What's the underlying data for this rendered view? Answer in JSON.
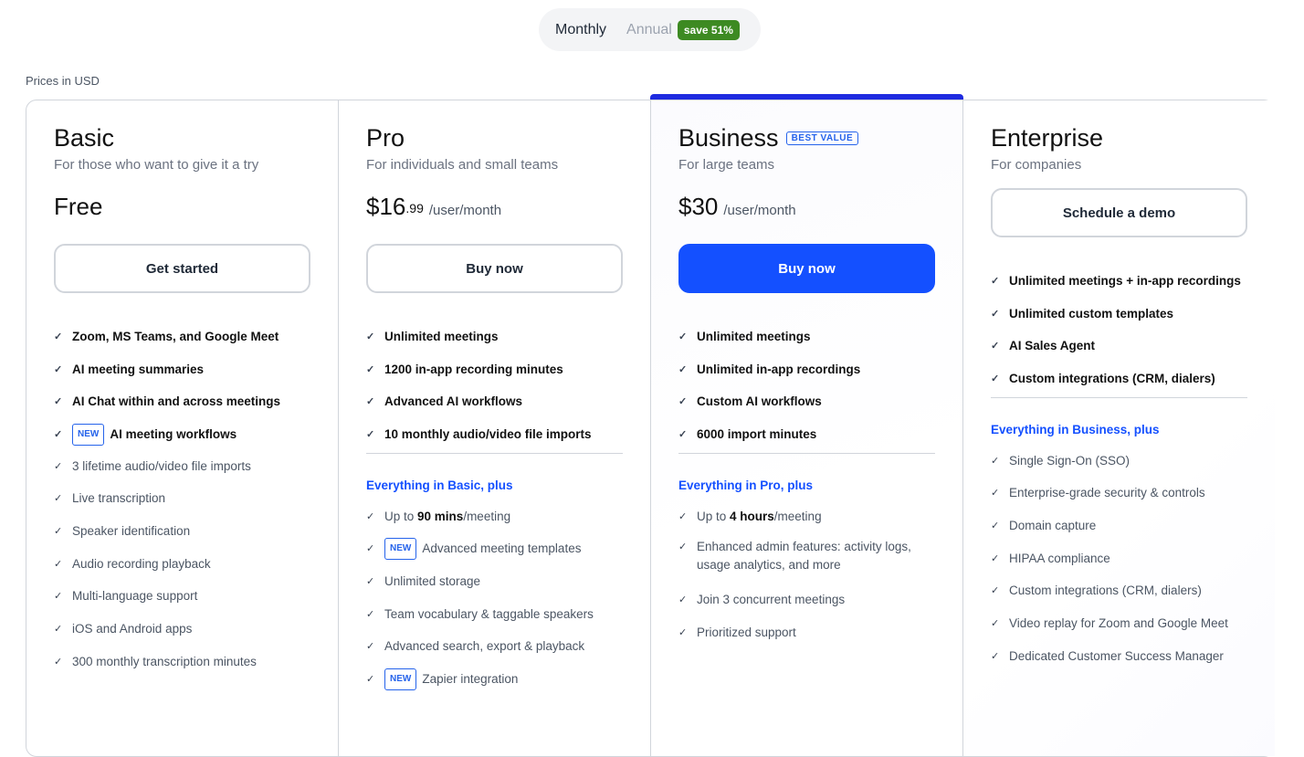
{
  "toggle": {
    "monthly": "Monthly",
    "annual": "Annual",
    "save": "save 51%"
  },
  "currency_note": "Prices in USD",
  "plans": [
    {
      "name": "Basic",
      "desc": "For those who want to give it a try",
      "price": "Free",
      "cents": "",
      "per": "",
      "button": "Get started",
      "primary": false,
      "top": [
        {
          "text": "Zoom, MS Teams, and Google Meet"
        },
        {
          "text": "AI meeting summaries"
        },
        {
          "text": "AI Chat within and across meetings"
        },
        {
          "text": "AI meeting workflows",
          "new": "NEW"
        }
      ],
      "plus": "",
      "more": [
        {
          "text": "3 lifetime audio/video file imports"
        },
        {
          "text": "Live transcription"
        },
        {
          "text": "Speaker identification"
        },
        {
          "text": "Audio recording playback"
        },
        {
          "text": "Multi-language support"
        },
        {
          "text": "iOS and Android apps"
        },
        {
          "text": "300 monthly transcription minutes"
        }
      ]
    },
    {
      "name": "Pro",
      "desc": "For individuals and small teams",
      "price": "$16",
      "cents": ".99",
      "per": "/user/month",
      "button": "Buy now",
      "primary": false,
      "top": [
        {
          "text": "Unlimited meetings"
        },
        {
          "text": "1200 in-app recording minutes"
        },
        {
          "text": "Advanced AI workflows"
        },
        {
          "text": "10 monthly audio/video file imports"
        }
      ],
      "plus": "Everything in Basic, plus",
      "more": [
        {
          "pre": "Up to ",
          "bold": "90 mins",
          "text": "/meeting"
        },
        {
          "text": "Advanced meeting templates",
          "new": "NEW"
        },
        {
          "text": "Unlimited storage"
        },
        {
          "text": "Team vocabulary & taggable speakers"
        },
        {
          "text": "Advanced search, export & playback"
        },
        {
          "text": "Zapier integration",
          "new": "NEW"
        }
      ]
    },
    {
      "name": "Business",
      "badge": "BEST VALUE",
      "desc": "For large teams",
      "price": "$30",
      "cents": "",
      "per": "/user/month",
      "button": "Buy now",
      "primary": true,
      "top": [
        {
          "text": "Unlimited meetings"
        },
        {
          "text": "Unlimited in-app recordings"
        },
        {
          "text": "Custom AI workflows"
        },
        {
          "text": "6000 import minutes"
        }
      ],
      "plus": "Everything in Pro, plus",
      "more": [
        {
          "pre": "Up to ",
          "bold": "4 hours",
          "text": "/meeting"
        },
        {
          "text": "Enhanced admin features: activity logs, usage analytics, and more",
          "two": true
        },
        {
          "text": "Join 3 concurrent meetings"
        },
        {
          "text": "Prioritized support"
        }
      ]
    },
    {
      "name": "Enterprise",
      "desc": "For companies",
      "price": "",
      "cents": "",
      "per": "",
      "button": "Schedule a demo",
      "primary": false,
      "top": [
        {
          "text": "Unlimited meetings + in-app recordings"
        },
        {
          "text": "Unlimited custom templates"
        },
        {
          "text": "AI Sales Agent"
        },
        {
          "text": "Custom integrations (CRM, dialers)"
        }
      ],
      "plus": "Everything in Business, plus",
      "more": [
        {
          "text": "Single Sign-On (SSO)"
        },
        {
          "text": "Enterprise-grade security & controls"
        },
        {
          "text": "Domain capture"
        },
        {
          "text": "HIPAA compliance"
        },
        {
          "text": "Custom integrations (CRM, dialers)"
        },
        {
          "text": "Video replay for Zoom and Google Meet"
        },
        {
          "text": "Dedicated Customer Success Manager"
        }
      ]
    }
  ],
  "colors": {
    "accent": "#1450ff",
    "highlight_bar": "#1e2be0",
    "save_badge": "#3d8a22"
  }
}
